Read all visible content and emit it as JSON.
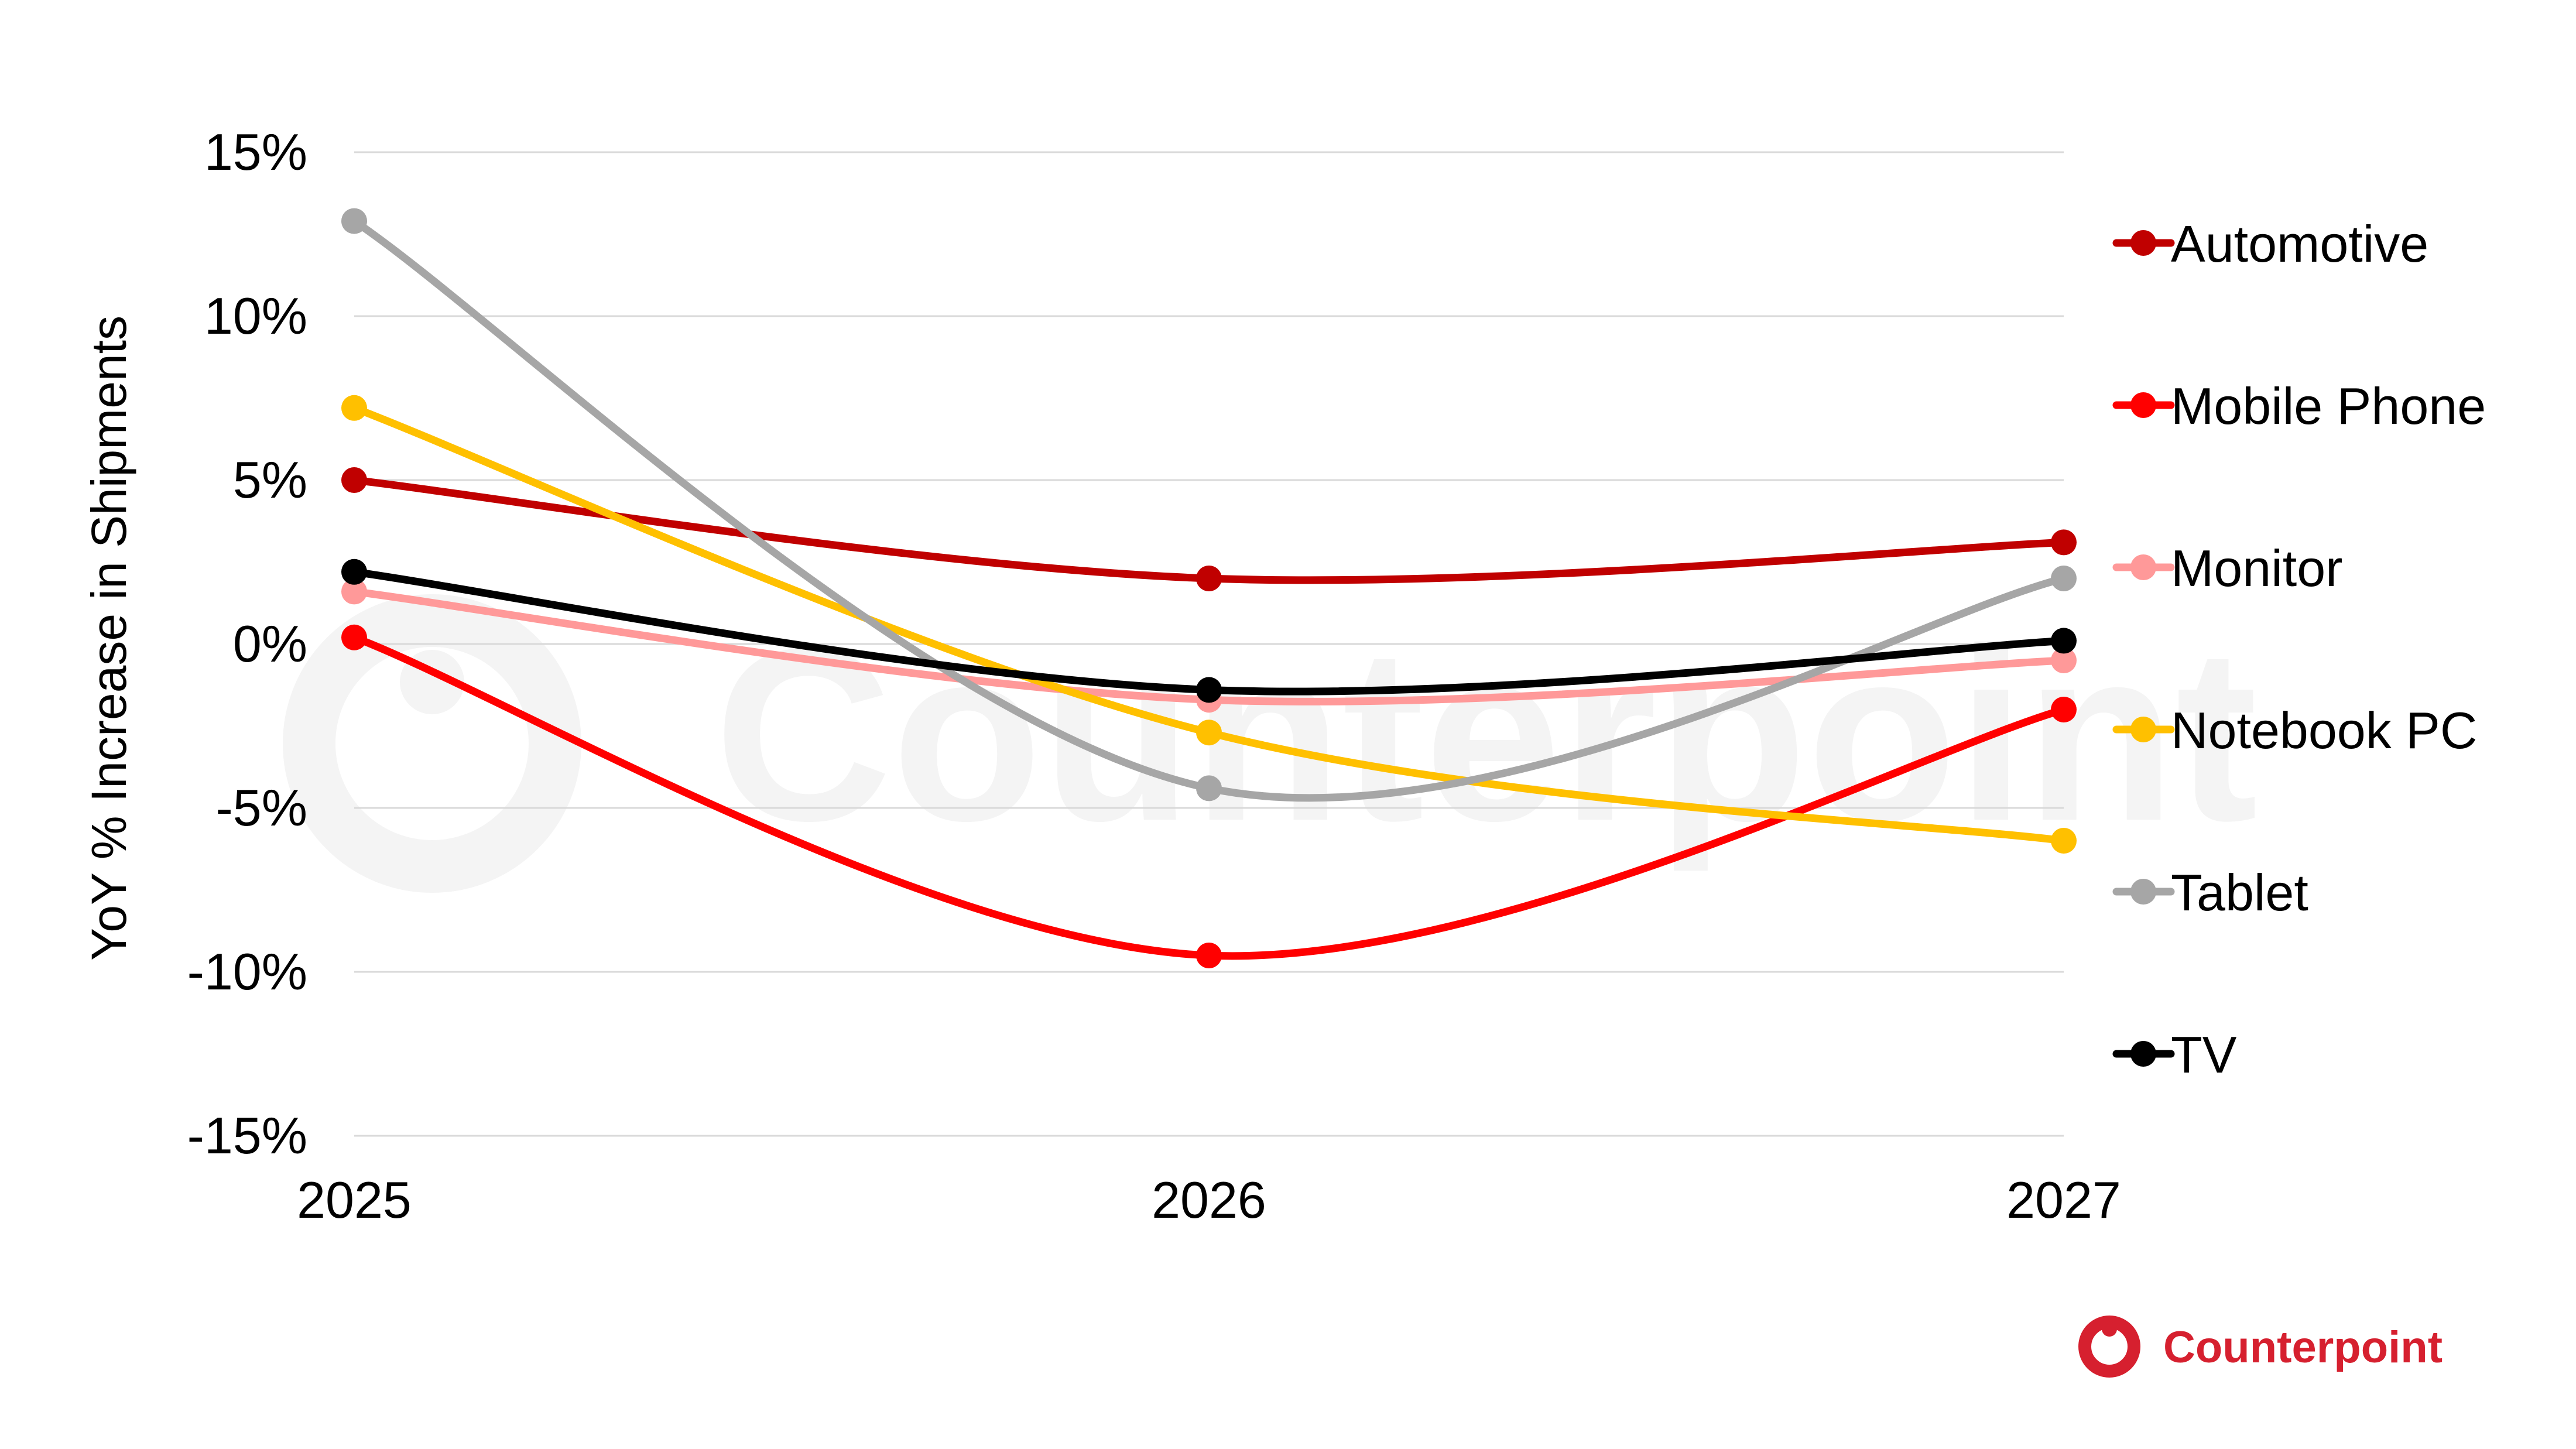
{
  "brand": {
    "name": "Counterpoint",
    "color": "#d6202f",
    "watermark_color": "#f3f3f3"
  },
  "chart_data": {
    "type": "line",
    "title": "",
    "xlabel": "",
    "ylabel": "YoY % Increase in Shipments",
    "x": [
      "2025",
      "2026",
      "2027"
    ],
    "ylim": [
      -15,
      15
    ],
    "y_ticks": [
      15,
      10,
      5,
      0,
      -5,
      -10,
      -15
    ],
    "y_tick_labels": [
      "15%",
      "10%",
      "5%",
      "0%",
      "-5%",
      "-10%",
      "-15%"
    ],
    "grid": "horizontal",
    "legend_position": "right",
    "smooth": true,
    "series": [
      {
        "name": "Automotive",
        "color": "#c00000",
        "values": [
          5.0,
          2.0,
          3.1
        ]
      },
      {
        "name": "Mobile Phone",
        "color": "#ff0000",
        "values": [
          0.2,
          -9.5,
          -2.0
        ]
      },
      {
        "name": "Monitor",
        "color": "#ff9999",
        "values": [
          1.6,
          -1.7,
          -0.5
        ]
      },
      {
        "name": "Notebook PC",
        "color": "#ffc000",
        "values": [
          7.2,
          -2.7,
          -6.0
        ]
      },
      {
        "name": "Tablet",
        "color": "#a6a6a6",
        "values": [
          12.9,
          -4.4,
          2.0
        ]
      },
      {
        "name": "TV",
        "color": "#000000",
        "values": [
          2.2,
          -1.4,
          0.1
        ]
      }
    ]
  }
}
